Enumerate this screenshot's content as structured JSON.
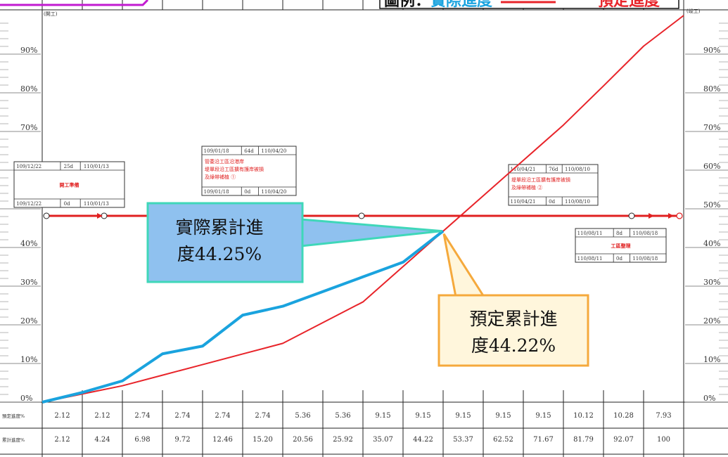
{
  "chart_data": {
    "type": "line",
    "x_count": 16,
    "ylim": [
      0,
      100
    ],
    "y_ticks": [
      {
        "value": 0,
        "label": "0%"
      },
      {
        "value": 10,
        "label": "10%"
      },
      {
        "value": 20,
        "label": "20%"
      },
      {
        "value": 30,
        "label": "30%"
      },
      {
        "value": 40,
        "label": "40%"
      },
      {
        "value": 50,
        "label": "50%"
      },
      {
        "value": 60,
        "label": "60%"
      },
      {
        "value": 70,
        "label": "70%"
      },
      {
        "value": 80,
        "label": "80%"
      },
      {
        "value": 90,
        "label": "90%"
      }
    ],
    "series": [
      {
        "color": "#e8242a",
        "values": [
          0,
          2.12,
          4.24,
          6.98,
          9.72,
          12.46,
          15.2,
          20.56,
          25.92,
          35.07,
          44.22,
          53.37,
          62.52,
          71.67,
          81.79,
          92.07,
          100
        ]
      },
      {
        "color": "#1aa3de",
        "values": [
          0,
          2.5,
          5.5,
          12.5,
          14.5,
          22.5,
          24.8,
          28.6,
          32.4,
          36.2,
          44.25
        ]
      }
    ],
    "table": {
      "rows": [
        {
          "label": "預定進度%",
          "values": [
            "2.12",
            "2.12",
            "2.74",
            "2.74",
            "2.74",
            "2.74",
            "5.36",
            "5.36",
            "9.15",
            "9.15",
            "9.15",
            "9.15",
            "9.15",
            "10.12",
            "10.28",
            "7.93"
          ]
        },
        {
          "label": "累計進度%",
          "values": [
            "2.12",
            "4.24",
            "6.98",
            "9.72",
            "12.46",
            "15.20",
            "20.56",
            "25.92",
            "35.07",
            "44.22",
            "53.37",
            "62.52",
            "71.67",
            "81.79",
            "92.07",
            "100"
          ]
        }
      ]
    },
    "annotations": {
      "actual": {
        "lines": [
          "實際累計進",
          "度44.25%"
        ],
        "bg": "#8fc1ef",
        "border": "#3fd7b9"
      },
      "planned": {
        "lines": [
          "預定累計進",
          "度44.22%"
        ],
        "bg": "#fff6dc",
        "border": "#f5a93c"
      }
    },
    "legend": {
      "prefix": "圖例：",
      "actual": "實際進度",
      "planned": "預定進度",
      "actual_color": "#1aa3de",
      "planned_color": "#e8242a"
    },
    "corner_labels": {
      "left": "(開工)",
      "right": "(竣工)"
    },
    "tasks": [
      {
        "start": "109/12/22",
        "dur": "25d",
        "end": "110/01/13",
        "start2": "109/12/22",
        "dur2": "0d",
        "end2": "110/01/13",
        "name": "開工準備",
        "detail": []
      },
      {
        "start": "109/01/18",
        "dur": "64d",
        "end": "110/04/20",
        "start2": "109/01/18",
        "dur2": "0d",
        "end2": "110/04/20",
        "name": "",
        "detail": [
          "管委沿工區沿港岸",
          "堤單段沿工區擴有護岸被損",
          "及綠帶補植 ①"
        ]
      },
      {
        "start": "110/04/21",
        "dur": "76d",
        "end": "110/08/10",
        "start2": "110/04/21",
        "dur2": "0d",
        "end2": "110/08/10",
        "name": "",
        "detail": [
          "堤單段沿工區擴有護岸被損",
          "及綠帶補植 ②"
        ]
      },
      {
        "start": "110/08/11",
        "dur": "8d",
        "end": "110/08/18",
        "start2": "110/08/11",
        "dur2": "0d",
        "end2": "110/08/18",
        "name": "工區整理",
        "detail": []
      }
    ]
  }
}
